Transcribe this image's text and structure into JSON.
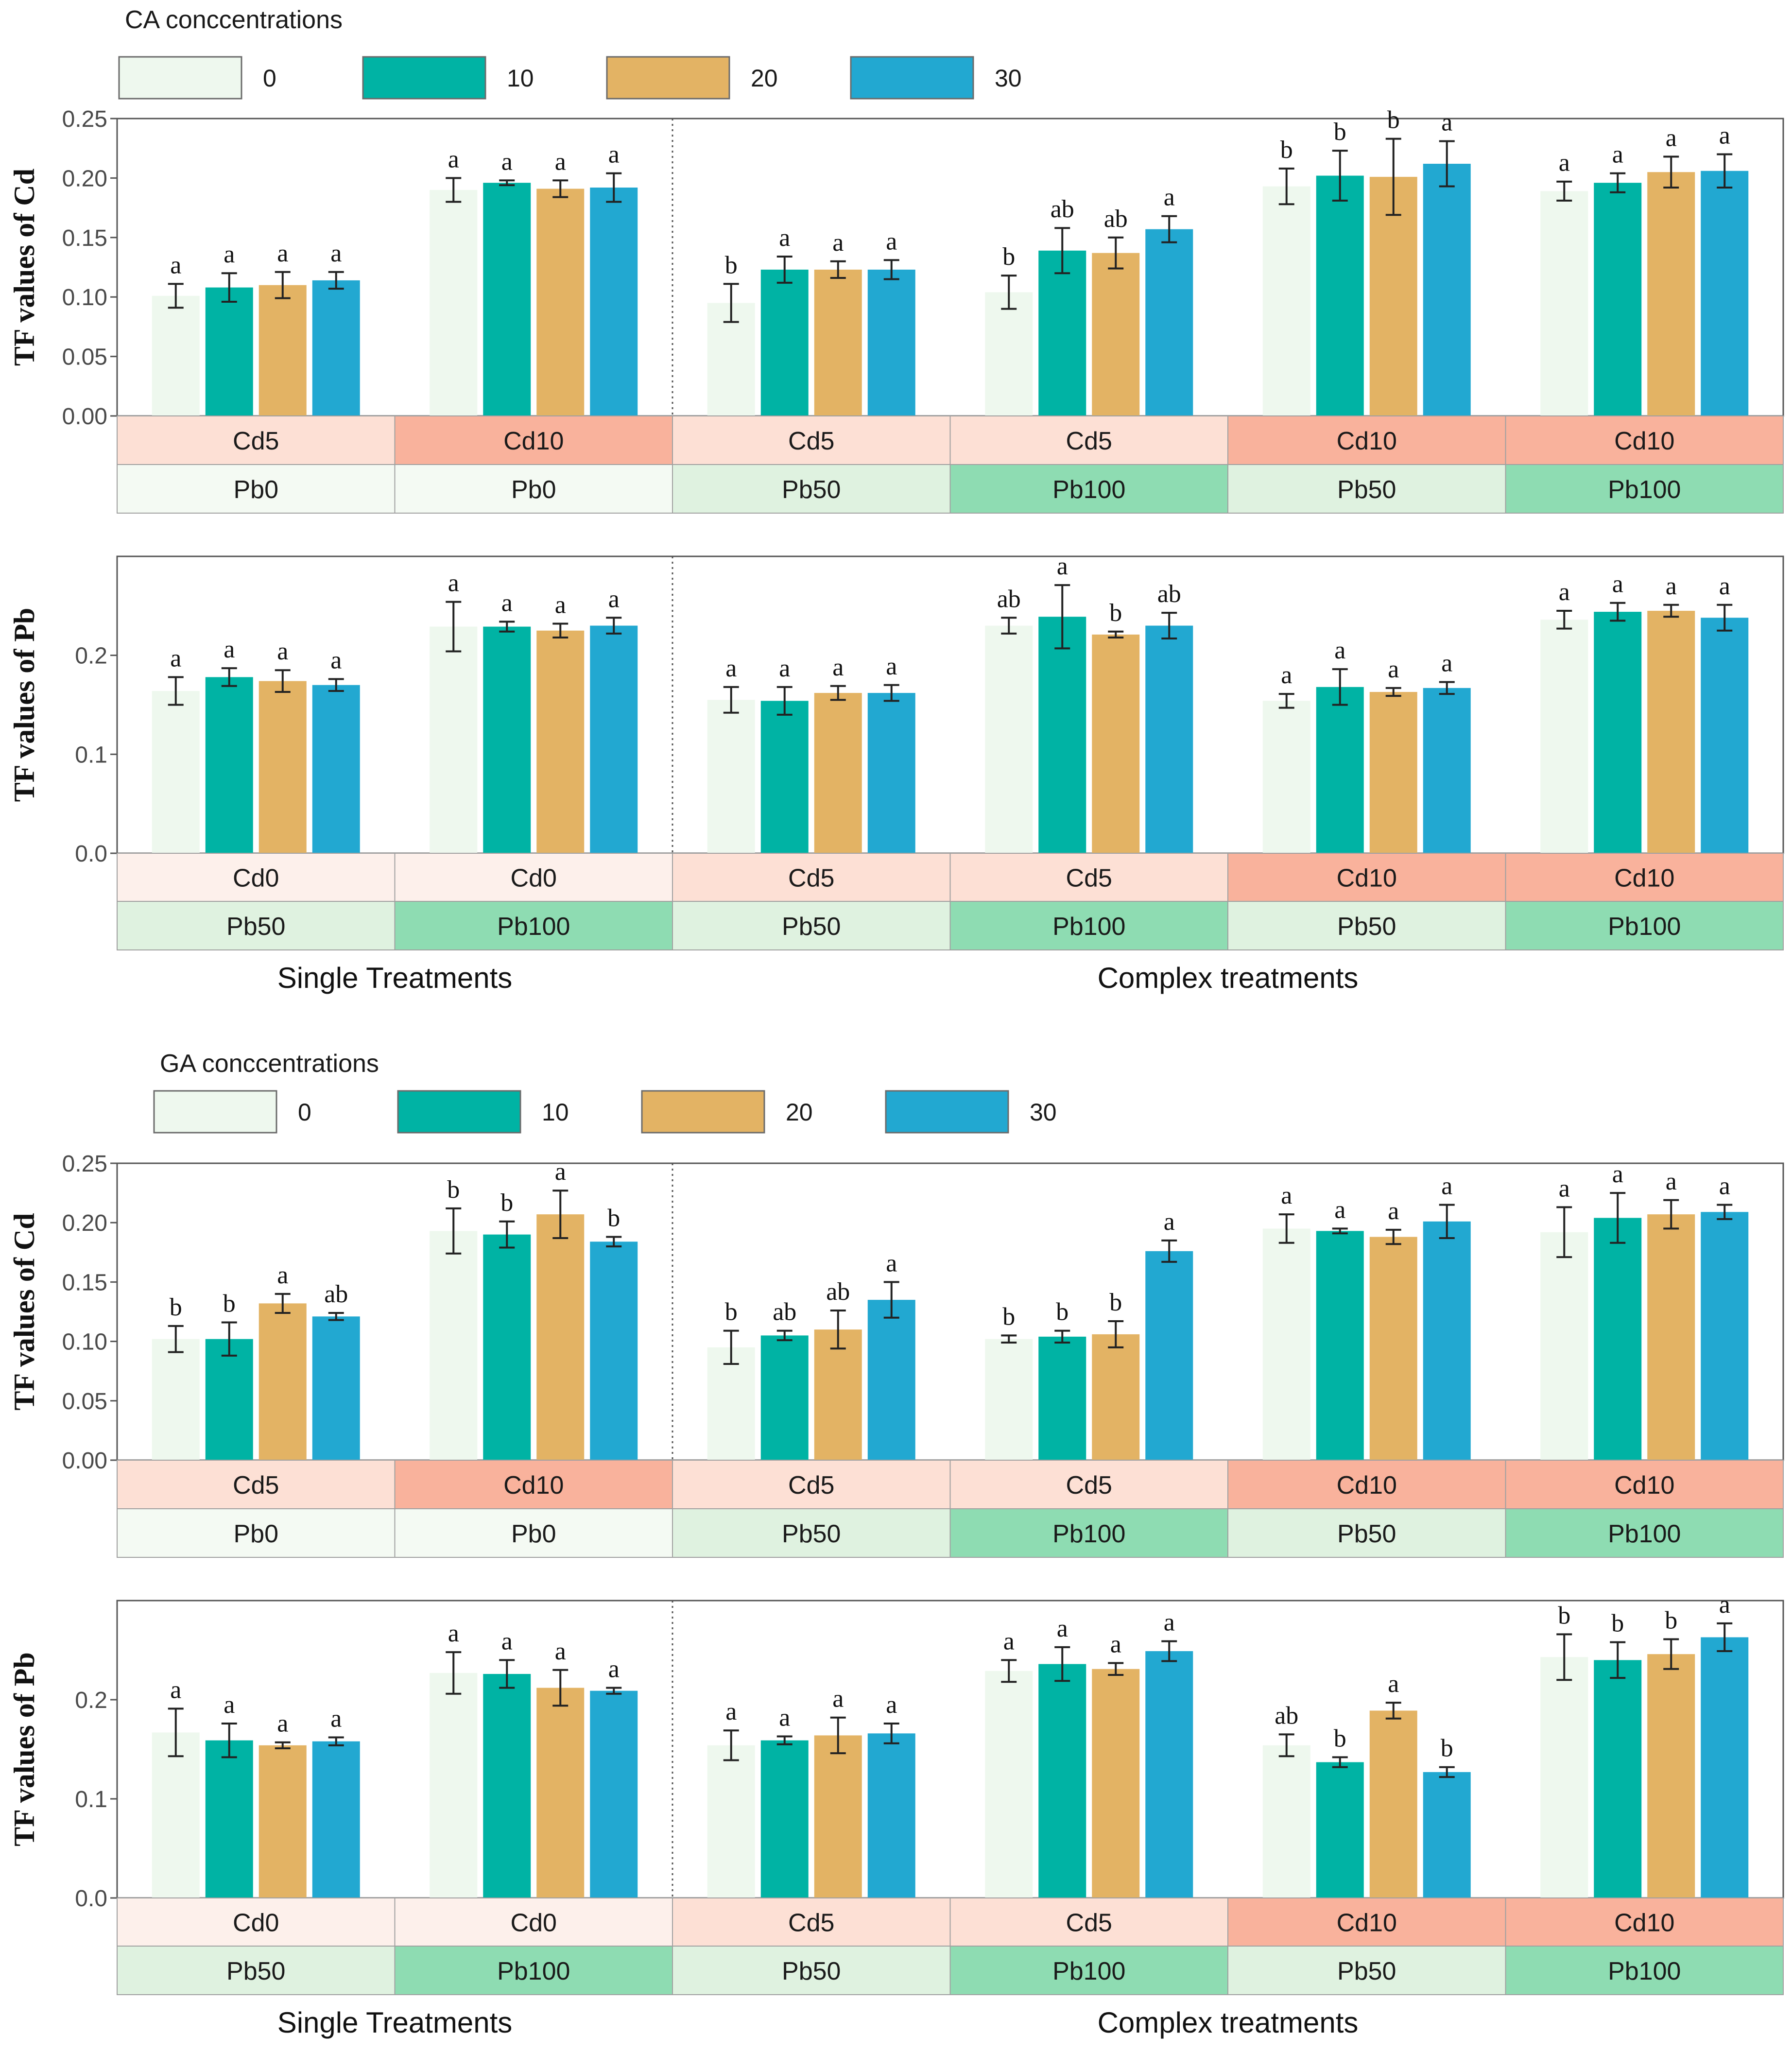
{
  "colors": {
    "series": [
      "#eef8ee",
      "#00b3a4",
      "#e3b364",
      "#22a8d1"
    ],
    "cd_strip": {
      "Cd0": "#fdf0eb",
      "Cd5": "#fde0d5",
      "Cd10": "#f9b29c"
    },
    "pb_strip": {
      "Pb0": "#f4faf3",
      "Pb50": "#dff2e0",
      "Pb100": "#8edcb2"
    }
  },
  "legend_levels": [
    "0",
    "10",
    "20",
    "30"
  ],
  "group_labels": {
    "single": "Single Treatments",
    "complex": "Complex treatments"
  },
  "chart_data": [
    {
      "type": "bar",
      "section": "CA",
      "legend_title": "CA conccentrations",
      "ylabel": "TF values of Cd",
      "ylim": [
        0,
        0.25
      ],
      "yticks": [
        "0.00",
        "0.05",
        "0.10",
        "0.15",
        "0.20",
        "0.25"
      ],
      "categories_cd": [
        "Cd5",
        "Cd10",
        "Cd5",
        "Cd5",
        "Cd10",
        "Cd10"
      ],
      "categories_pb": [
        "Pb0",
        "Pb0",
        "Pb50",
        "Pb100",
        "Pb50",
        "Pb100"
      ],
      "values": [
        [
          0.101,
          0.108,
          0.11,
          0.114
        ],
        [
          0.19,
          0.196,
          0.191,
          0.192
        ],
        [
          0.095,
          0.123,
          0.123,
          0.123
        ],
        [
          0.104,
          0.139,
          0.137,
          0.157
        ],
        [
          0.193,
          0.202,
          0.201,
          0.212
        ],
        [
          0.189,
          0.196,
          0.205,
          0.206
        ]
      ],
      "errors": [
        [
          0.01,
          0.012,
          0.011,
          0.007
        ],
        [
          0.01,
          0.002,
          0.007,
          0.012
        ],
        [
          0.016,
          0.011,
          0.007,
          0.008
        ],
        [
          0.014,
          0.019,
          0.013,
          0.011
        ],
        [
          0.015,
          0.021,
          0.032,
          0.019
        ],
        [
          0.008,
          0.008,
          0.013,
          0.014
        ]
      ],
      "letters": [
        [
          "a",
          "a",
          "a",
          "a"
        ],
        [
          "a",
          "a",
          "a",
          "a"
        ],
        [
          "b",
          "a",
          "a",
          "a"
        ],
        [
          "b",
          "ab",
          "ab",
          "a"
        ],
        [
          "b",
          "b",
          "b",
          "a"
        ],
        [
          "a",
          "a",
          "a",
          "a"
        ]
      ]
    },
    {
      "type": "bar",
      "section": "CA",
      "ylabel": "TF values of Pb",
      "ylim": [
        0,
        0.3
      ],
      "yticks": [
        "0.0",
        "0.1",
        "0.2"
      ],
      "categories_cd": [
        "Cd0",
        "Cd0",
        "Cd5",
        "Cd5",
        "Cd10",
        "Cd10"
      ],
      "categories_pb": [
        "Pb50",
        "Pb100",
        "Pb50",
        "Pb100",
        "Pb50",
        "Pb100"
      ],
      "values": [
        [
          0.164,
          0.178,
          0.174,
          0.17
        ],
        [
          0.229,
          0.229,
          0.225,
          0.23
        ],
        [
          0.155,
          0.154,
          0.162,
          0.162
        ],
        [
          0.23,
          0.239,
          0.221,
          0.23
        ],
        [
          0.154,
          0.168,
          0.163,
          0.167
        ],
        [
          0.236,
          0.244,
          0.245,
          0.238
        ]
      ],
      "errors": [
        [
          0.014,
          0.009,
          0.011,
          0.006
        ],
        [
          0.025,
          0.005,
          0.007,
          0.008
        ],
        [
          0.013,
          0.014,
          0.007,
          0.008
        ],
        [
          0.008,
          0.032,
          0.003,
          0.013
        ],
        [
          0.007,
          0.018,
          0.004,
          0.006
        ],
        [
          0.009,
          0.009,
          0.006,
          0.013
        ]
      ],
      "letters": [
        [
          "a",
          "a",
          "a",
          "a"
        ],
        [
          "a",
          "a",
          "a",
          "a"
        ],
        [
          "a",
          "a",
          "a",
          "a"
        ],
        [
          "ab",
          "a",
          "b",
          "ab"
        ],
        [
          "a",
          "a",
          "a",
          "a"
        ],
        [
          "a",
          "a",
          "a",
          "a"
        ]
      ]
    },
    {
      "type": "bar",
      "section": "GA",
      "legend_title": "GA conccentrations",
      "ylabel": "TF values of Cd",
      "ylim": [
        0,
        0.25
      ],
      "yticks": [
        "0.00",
        "0.05",
        "0.10",
        "0.15",
        "0.20",
        "0.25"
      ],
      "categories_cd": [
        "Cd5",
        "Cd10",
        "Cd5",
        "Cd5",
        "Cd10",
        "Cd10"
      ],
      "categories_pb": [
        "Pb0",
        "Pb0",
        "Pb50",
        "Pb100",
        "Pb50",
        "Pb100"
      ],
      "values": [
        [
          0.102,
          0.102,
          0.132,
          0.121
        ],
        [
          0.193,
          0.19,
          0.207,
          0.184
        ],
        [
          0.095,
          0.105,
          0.11,
          0.135
        ],
        [
          0.102,
          0.104,
          0.106,
          0.176
        ],
        [
          0.195,
          0.193,
          0.188,
          0.201
        ],
        [
          0.192,
          0.204,
          0.207,
          0.209
        ]
      ],
      "errors": [
        [
          0.011,
          0.014,
          0.008,
          0.003
        ],
        [
          0.019,
          0.011,
          0.02,
          0.004
        ],
        [
          0.014,
          0.004,
          0.016,
          0.015
        ],
        [
          0.003,
          0.005,
          0.011,
          0.009
        ],
        [
          0.012,
          0.002,
          0.006,
          0.014
        ],
        [
          0.021,
          0.021,
          0.012,
          0.006
        ]
      ],
      "letters": [
        [
          "b",
          "b",
          "a",
          "ab"
        ],
        [
          "b",
          "b",
          "a",
          "b"
        ],
        [
          "b",
          "ab",
          "ab",
          "a"
        ],
        [
          "b",
          "b",
          "b",
          "a"
        ],
        [
          "a",
          "a",
          "a",
          "a"
        ],
        [
          "a",
          "a",
          "a",
          "a"
        ]
      ]
    },
    {
      "type": "bar",
      "section": "GA",
      "ylabel": "TF values of Pb",
      "ylim": [
        0,
        0.3
      ],
      "yticks": [
        "0.0",
        "0.1",
        "0.2"
      ],
      "categories_cd": [
        "Cd0",
        "Cd0",
        "Cd5",
        "Cd5",
        "Cd10",
        "Cd10"
      ],
      "categories_pb": [
        "Pb50",
        "Pb100",
        "Pb50",
        "Pb100",
        "Pb50",
        "Pb100"
      ],
      "values": [
        [
          0.167,
          0.159,
          0.154,
          0.158
        ],
        [
          0.227,
          0.226,
          0.212,
          0.209
        ],
        [
          0.154,
          0.159,
          0.164,
          0.166
        ],
        [
          0.229,
          0.236,
          0.231,
          0.249
        ],
        [
          0.154,
          0.137,
          0.189,
          0.127
        ],
        [
          0.243,
          0.24,
          0.246,
          0.263
        ]
      ],
      "errors": [
        [
          0.024,
          0.017,
          0.003,
          0.004
        ],
        [
          0.021,
          0.014,
          0.018,
          0.003
        ],
        [
          0.015,
          0.004,
          0.018,
          0.01
        ],
        [
          0.011,
          0.017,
          0.006,
          0.01
        ],
        [
          0.011,
          0.005,
          0.008,
          0.005
        ],
        [
          0.023,
          0.018,
          0.015,
          0.014
        ]
      ],
      "letters": [
        [
          "a",
          "a",
          "a",
          "a"
        ],
        [
          "a",
          "a",
          "a",
          "a"
        ],
        [
          "a",
          "a",
          "a",
          "a"
        ],
        [
          "a",
          "a",
          "a",
          "a"
        ],
        [
          "ab",
          "b",
          "a",
          "b"
        ],
        [
          "b",
          "b",
          "b",
          "a"
        ]
      ]
    }
  ]
}
